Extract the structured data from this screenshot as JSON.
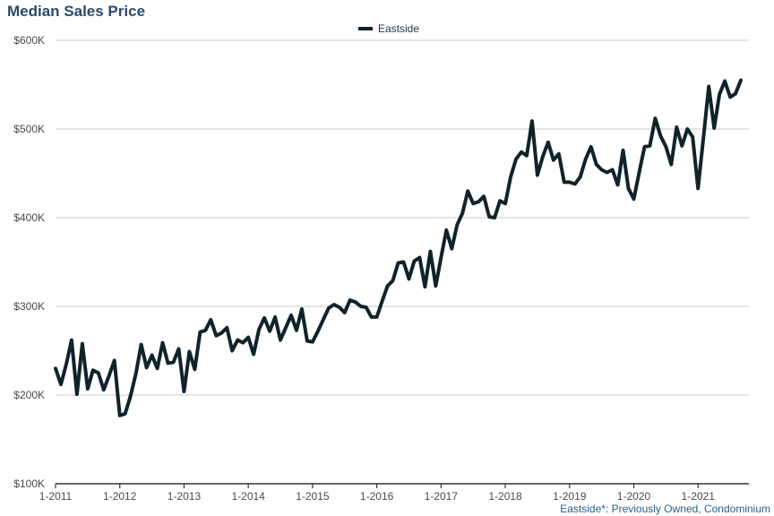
{
  "chart_data": {
    "type": "line",
    "title": "Median Sales Price",
    "legend": [
      "Eastside"
    ],
    "legend_position": "top-center",
    "footnote": "Eastside*: Previously Owned, Condominium",
    "colors": {
      "series": "#10232b",
      "grid": "#c8c8c8",
      "title": "#2b4a6b",
      "footnote": "#2b5d8a"
    },
    "grid": true,
    "ylim": [
      100000,
      600000
    ],
    "yticks": [
      {
        "value": 100000,
        "label": "$100K"
      },
      {
        "value": 200000,
        "label": "$200K"
      },
      {
        "value": 300000,
        "label": "$300K"
      },
      {
        "value": 400000,
        "label": "$400K"
      },
      {
        "value": 500000,
        "label": "$500K"
      },
      {
        "value": 600000,
        "label": "$600K"
      }
    ],
    "xticks": [
      "1-2011",
      "1-2012",
      "1-2013",
      "1-2014",
      "1-2015",
      "1-2016",
      "1-2017",
      "1-2018",
      "1-2019",
      "1-2020",
      "1-2021"
    ],
    "x_start": "1-2011",
    "series": [
      {
        "name": "Eastside",
        "values": [
          230000,
          212000,
          235000,
          262000,
          201000,
          258000,
          207000,
          228000,
          225000,
          206000,
          222000,
          239000,
          177000,
          179000,
          199000,
          224000,
          257000,
          231000,
          245000,
          230000,
          259000,
          236000,
          237000,
          252000,
          204000,
          249000,
          229000,
          271000,
          273000,
          285000,
          267000,
          270000,
          276000,
          250000,
          262000,
          259000,
          265000,
          246000,
          274000,
          287000,
          272000,
          288000,
          262000,
          276000,
          290000,
          273000,
          297000,
          261000,
          260000,
          272000,
          285000,
          298000,
          302000,
          299000,
          293000,
          307000,
          305000,
          300000,
          299000,
          288000,
          288000,
          306000,
          323000,
          329000,
          349000,
          350000,
          331000,
          351000,
          355000,
          322000,
          362000,
          323000,
          355000,
          386000,
          365000,
          392000,
          405000,
          430000,
          416000,
          418000,
          424000,
          401000,
          400000,
          419000,
          416000,
          446000,
          466000,
          474000,
          470000,
          509000,
          448000,
          469000,
          485000,
          465000,
          472000,
          440000,
          440000,
          438000,
          446000,
          466000,
          480000,
          460000,
          454000,
          451000,
          454000,
          437000,
          476000,
          433000,
          421000,
          451000,
          480000,
          481000,
          512000,
          492000,
          480000,
          460000,
          502000,
          481000,
          500000,
          491000,
          433000,
          490000,
          548000,
          501000,
          539000,
          554000,
          536000,
          540000,
          555000
        ]
      }
    ]
  }
}
